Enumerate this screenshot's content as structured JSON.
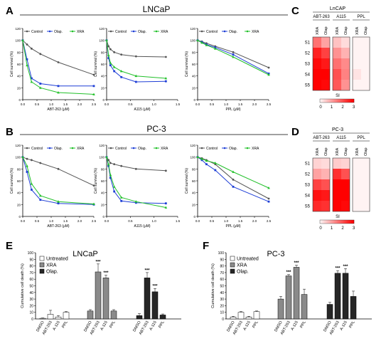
{
  "panels": {
    "A": "A",
    "B": "B",
    "C": "C",
    "D": "D",
    "E": "E",
    "F": "F"
  },
  "colors": {
    "control": "#555555",
    "olap": "#1f3fd6",
    "xra": "#22c02a",
    "untreated": "#ffffff",
    "xra_bar": "#8a8a8a",
    "olap_bar": "#262626",
    "heat_low": "#fff3f3",
    "heat_high": "#ff0000"
  },
  "chart_data": [
    {
      "panel": "A",
      "title": "LNCaP",
      "type": "line",
      "ylabel": "Cell survival (%)",
      "legend": [
        "Control",
        "Olap.",
        "XRA"
      ],
      "plots": [
        {
          "xlabel": "ABT-263 (μM)",
          "ylim": [
            0,
            120
          ],
          "xlim": [
            0,
            2.5
          ],
          "xticks": [
            "0.0",
            "0.5",
            "1.0",
            "1.5",
            "2.0",
            "2.5"
          ],
          "yticks": [
            "0",
            "20",
            "40",
            "60",
            "80",
            "100",
            "120"
          ],
          "x": [
            0,
            0.15,
            0.31,
            0.62,
            1.25,
            2.5
          ],
          "series": [
            {
              "name": "Control",
              "values": [
                100,
                93,
                86,
                77,
                63,
                42
              ]
            },
            {
              "name": "Olap.",
              "values": [
                100,
                68,
                36,
                27,
                23,
                23
              ]
            },
            {
              "name": "XRA",
              "values": [
                100,
                58,
                30,
                20,
                12,
                9
              ]
            }
          ]
        },
        {
          "xlabel": "A115 (μM)",
          "ylim": [
            0,
            120
          ],
          "xlim": [
            0,
            1.5
          ],
          "xticks": [
            "0.0",
            "0.5",
            "1.0",
            "1.5"
          ],
          "yticks": [
            "0",
            "20",
            "40",
            "60",
            "80",
            "100",
            "120"
          ],
          "x": [
            0,
            0.04,
            0.08,
            0.16,
            0.31,
            0.62,
            1.25
          ],
          "series": [
            {
              "name": "Control",
              "values": [
                100,
                90,
                85,
                80,
                76,
                73,
                72
              ]
            },
            {
              "name": "Olap.",
              "values": [
                100,
                70,
                58,
                48,
                38,
                30,
                31
              ]
            },
            {
              "name": "XRA",
              "values": [
                100,
                75,
                62,
                55,
                48,
                40,
                36
              ]
            }
          ]
        },
        {
          "xlabel": "PPL (μM)",
          "ylim": [
            0,
            120
          ],
          "xlim": [
            0,
            2.5
          ],
          "xticks": [
            "0.0",
            "0.5",
            "1.0",
            "1.5",
            "2.0",
            "2.5"
          ],
          "yticks": [
            "0",
            "20",
            "40",
            "60",
            "80",
            "100",
            "120"
          ],
          "x": [
            0,
            0.15,
            0.31,
            0.62,
            1.25,
            2.5
          ],
          "series": [
            {
              "name": "Control",
              "values": [
                100,
                98,
                95,
                90,
                80,
                54
              ]
            },
            {
              "name": "Olap.",
              "values": [
                100,
                97,
                93,
                88,
                76,
                44
              ]
            },
            {
              "name": "XRA",
              "values": [
                100,
                96,
                92,
                86,
                72,
                42
              ]
            }
          ]
        }
      ]
    },
    {
      "panel": "B",
      "title": "PC-3",
      "type": "line",
      "ylabel": "Cell survival (%)",
      "legend": [
        "Control",
        "Olap.",
        "XRA"
      ],
      "plots": [
        {
          "xlabel": "ABT-263 (μM)",
          "ylim": [
            0,
            120
          ],
          "xlim": [
            0,
            2.5
          ],
          "xticks": [
            "0.0",
            "0.5",
            "1.0",
            "1.5",
            "2.0",
            "2.5"
          ],
          "yticks": [
            "0",
            "20",
            "40",
            "60",
            "80",
            "100",
            "120"
          ],
          "x": [
            0,
            0.15,
            0.31,
            0.62,
            1.25,
            2.5
          ],
          "series": [
            {
              "name": "Control",
              "values": [
                100,
                97,
                95,
                90,
                80,
                52
              ]
            },
            {
              "name": "Olap.",
              "values": [
                100,
                75,
                45,
                28,
                22,
                20
              ]
            },
            {
              "name": "XRA",
              "values": [
                100,
                85,
                55,
                35,
                25,
                21
              ]
            }
          ]
        },
        {
          "xlabel": "A115 (μM)",
          "ylim": [
            0,
            120
          ],
          "xlim": [
            0,
            1.5
          ],
          "xticks": [
            "0.0",
            "0.5",
            "1.0",
            "1.5"
          ],
          "yticks": [
            "0",
            "20",
            "40",
            "60",
            "80",
            "100",
            "120"
          ],
          "x": [
            0,
            0.04,
            0.08,
            0.16,
            0.31,
            0.62,
            1.25
          ],
          "series": [
            {
              "name": "Control",
              "values": [
                100,
                95,
                90,
                88,
                85,
                80,
                77
              ]
            },
            {
              "name": "Olap.",
              "values": [
                100,
                85,
                65,
                42,
                26,
                23,
                22
              ]
            },
            {
              "name": "XRA",
              "values": [
                100,
                88,
                70,
                50,
                32,
                25,
                15
              ]
            }
          ]
        },
        {
          "xlabel": "PPL (μM)",
          "ylim": [
            0,
            120
          ],
          "xlim": [
            0,
            2.5
          ],
          "xticks": [
            "0.0",
            "0.5",
            "1.0",
            "1.5",
            "2.0",
            "2.5"
          ],
          "yticks": [
            "0",
            "20",
            "40",
            "60",
            "80",
            "100",
            "120"
          ],
          "x": [
            0,
            0.15,
            0.31,
            0.62,
            1.25,
            2.5
          ],
          "series": [
            {
              "name": "Control",
              "values": [
                100,
                98,
                95,
                88,
                62,
                30
              ]
            },
            {
              "name": "Olap.",
              "values": [
                100,
                95,
                88,
                78,
                50,
                25
              ]
            },
            {
              "name": "XRA",
              "values": [
                100,
                97,
                94,
                90,
                75,
                48
              ]
            }
          ]
        }
      ]
    },
    {
      "panel": "C",
      "title": "LnCAP",
      "type": "heatmap",
      "groups": [
        "ABT-263",
        "A115",
        "PPL"
      ],
      "columns": [
        "XRA",
        "Olap",
        "XRA",
        "Olap",
        "XRA",
        "Olap"
      ],
      "rows": [
        "S1",
        "S2",
        "S3",
        "S4",
        "S5"
      ],
      "values": [
        [
          1.6,
          1.0,
          0.6,
          0.3,
          0,
          0
        ],
        [
          2.6,
          2.2,
          1.2,
          0.8,
          0,
          0
        ],
        [
          2.9,
          2.7,
          1.6,
          1.3,
          0,
          0
        ],
        [
          3.0,
          3.0,
          2.0,
          1.4,
          0.2,
          0
        ],
        [
          3.0,
          2.9,
          1.9,
          1.2,
          0,
          0
        ]
      ],
      "scale_label": "SI",
      "scale_ticks": [
        "0",
        "1",
        "2",
        "3"
      ]
    },
    {
      "panel": "D",
      "title": "PC-3",
      "type": "heatmap",
      "groups": [
        "ABT-263",
        "A115",
        "PPL"
      ],
      "columns": [
        "XRA",
        "Olap",
        "XRA",
        "Olap",
        "XRA",
        "Olap"
      ],
      "rows": [
        "S1",
        "S2",
        "S3",
        "S4",
        "S5"
      ],
      "values": [
        [
          0.4,
          0.3,
          0.5,
          0.4,
          0,
          0
        ],
        [
          1.0,
          0.8,
          2.4,
          2.0,
          0,
          0
        ],
        [
          2.2,
          2.0,
          3.0,
          3.0,
          0,
          0
        ],
        [
          2.8,
          2.7,
          3.0,
          3.0,
          0,
          0
        ],
        [
          2.5,
          2.4,
          3.0,
          2.9,
          0,
          0
        ]
      ],
      "scale_label": "SI",
      "scale_ticks": [
        "0",
        "1",
        "2",
        "3"
      ]
    },
    {
      "panel": "E",
      "title": "LNCaP",
      "type": "bar",
      "ylabel": "Cumulative cell death (%)",
      "ylim": [
        0,
        100
      ],
      "yticks": [
        "0",
        "10",
        "20",
        "30",
        "40",
        "50",
        "60",
        "70",
        "80",
        "90",
        "100"
      ],
      "legend": [
        "Untreated",
        "XRA",
        "Olap."
      ],
      "groups": [
        {
          "series": "Untreated",
          "categories": [
            "DMSO",
            "ABT-263",
            "A-115",
            "PPL"
          ],
          "values": [
            1,
            7,
            3,
            10
          ],
          "errors": [
            0.5,
            6,
            2,
            1
          ]
        },
        {
          "series": "XRA",
          "categories": [
            "DMSO",
            "ABT-263",
            "A-115",
            "PPL"
          ],
          "values": [
            12,
            71,
            62,
            12
          ],
          "errors": [
            2,
            12,
            4,
            2
          ],
          "stars": [
            "",
            "***",
            "***",
            ""
          ]
        },
        {
          "series": "Olap.",
          "categories": [
            "DMSO",
            "ABT-263",
            "A-115",
            "PPL"
          ],
          "values": [
            5,
            62,
            41,
            6
          ],
          "errors": [
            3,
            8,
            5,
            1.5
          ],
          "stars": [
            "",
            "***",
            "***",
            ""
          ]
        }
      ]
    },
    {
      "panel": "F",
      "title": "PC-3",
      "type": "bar",
      "ylabel": "Cumulative cell death (%)",
      "ylim": [
        0,
        100
      ],
      "yticks": [
        "0",
        "10",
        "20",
        "30",
        "40",
        "50",
        "60",
        "70",
        "80",
        "90",
        "100"
      ],
      "legend": [
        "Untreated",
        "XRA",
        "Olap."
      ],
      "groups": [
        {
          "series": "Untreated",
          "categories": [
            "DMSO",
            "ABT-263",
            "A-115",
            "PPL"
          ],
          "values": [
            3,
            10,
            3,
            11
          ],
          "errors": [
            1,
            1,
            1,
            1
          ]
        },
        {
          "series": "XRA",
          "categories": [
            "DMSO",
            "ABT-263",
            "A-115",
            "PPL"
          ],
          "values": [
            30,
            65,
            78,
            37
          ],
          "errors": [
            4,
            2,
            3,
            8
          ],
          "stars": [
            "",
            "***",
            "***",
            ""
          ]
        },
        {
          "series": "Olap.",
          "categories": [
            "DMSO",
            "ABT-263",
            "A-115",
            "PPL"
          ],
          "values": [
            22,
            69,
            69,
            34
          ],
          "errors": [
            3,
            4,
            7,
            8
          ],
          "stars": [
            "",
            "***",
            "***",
            ""
          ]
        }
      ]
    }
  ]
}
